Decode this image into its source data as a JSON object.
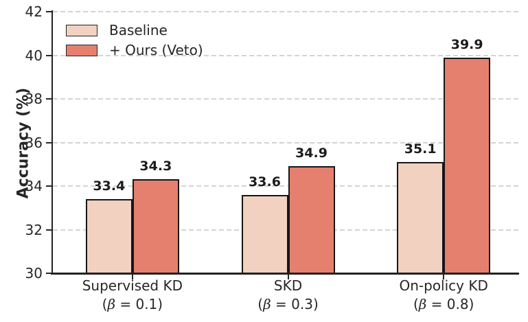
{
  "chart_data": {
    "type": "bar",
    "title": "",
    "xlabel": "",
    "ylabel": "Accuracy (%)",
    "ylim": [
      30,
      42
    ],
    "yticks": [
      30,
      32,
      34,
      36,
      38,
      40,
      42
    ],
    "grid": "horizontal-dashed",
    "grid_color": "#cbcbcb",
    "legend_position": "upper-left",
    "bar_edge_color": "#161616",
    "categories": [
      {
        "label": "Supervised KD",
        "sublabel": "(β = 0.1)"
      },
      {
        "label": "SKD",
        "sublabel": "(β = 0.3)"
      },
      {
        "label": "On-policy KD",
        "sublabel": "(β = 0.8)"
      }
    ],
    "series": [
      {
        "name": "Baseline",
        "color": "#F2D1C1",
        "values": [
          33.4,
          33.6,
          35.1
        ]
      },
      {
        "name": "+ Ours (Veto)",
        "color": "#E6806E",
        "values": [
          34.3,
          34.9,
          39.9
        ]
      }
    ]
  }
}
